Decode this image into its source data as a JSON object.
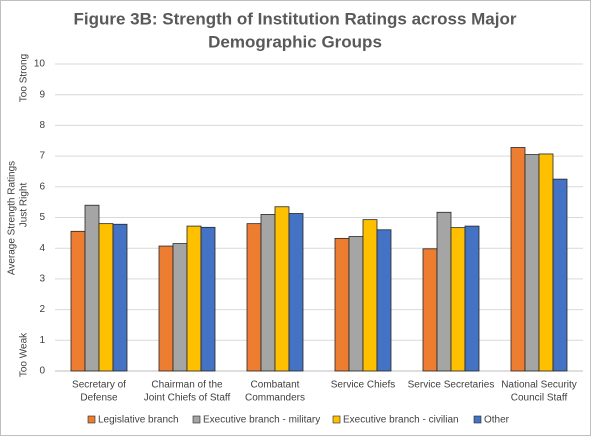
{
  "chart_data": {
    "type": "bar",
    "title": [
      "Figure 3B: Strength of Institution Ratings across Major",
      "Demographic Groups"
    ],
    "y_label": "Average Strength Ratings",
    "y_annotations": [
      "Too Strong",
      "Just Right",
      "Too Weak"
    ],
    "categories": [
      [
        "Secretary of",
        "Defense"
      ],
      [
        "Chairman of the",
        "Joint Chiefs of Staff"
      ],
      [
        "Combatant",
        "Commanders"
      ],
      [
        "Service Chiefs"
      ],
      [
        "Service Secretaries"
      ],
      [
        "National Security",
        "Council Staff"
      ]
    ],
    "series": [
      {
        "name": "Legislative branch",
        "color": "#ed7d31",
        "values": [
          4.55,
          4.07,
          4.8,
          4.32,
          3.98,
          7.28
        ]
      },
      {
        "name": "Executive branch - military",
        "color": "#a5a5a5",
        "values": [
          5.4,
          4.15,
          5.1,
          4.38,
          5.17,
          7.05
        ]
      },
      {
        "name": "Executive branch - civilian",
        "color": "#ffc000",
        "values": [
          4.8,
          4.72,
          5.35,
          4.93,
          4.67,
          7.07
        ]
      },
      {
        "name": "Other",
        "color": "#4472c4",
        "values": [
          4.78,
          4.68,
          5.13,
          4.6,
          4.72,
          6.25
        ]
      }
    ],
    "ylim": [
      0,
      10
    ],
    "yticks": [
      0,
      1,
      2,
      3,
      4,
      5,
      6,
      7,
      8,
      9,
      10
    ],
    "grid": true,
    "legend": "bottom"
  }
}
